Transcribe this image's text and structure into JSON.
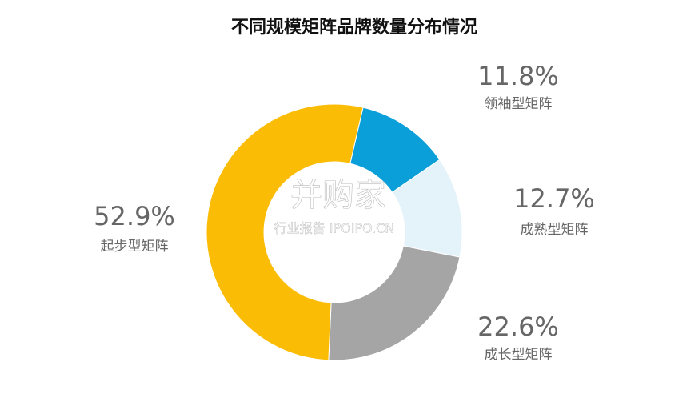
{
  "chart_data": {
    "type": "donut",
    "title": "不同规模矩阵品牌数量分布情况",
    "categories": [
      "领袖型矩阵",
      "成熟型矩阵",
      "成长型矩阵",
      "起步型矩阵"
    ],
    "values": [
      11.8,
      12.7,
      22.6,
      52.9
    ],
    "value_labels": [
      "11.8%",
      "12.7%",
      "22.6%",
      "52.9%"
    ],
    "colors": [
      "#0a9fd8",
      "#e4f2fa",
      "#a5a5a5",
      "#fbbc05"
    ],
    "watermark": {
      "brand": "并购家",
      "subtitle": "行业报告 IPOIPO.CN"
    }
  }
}
